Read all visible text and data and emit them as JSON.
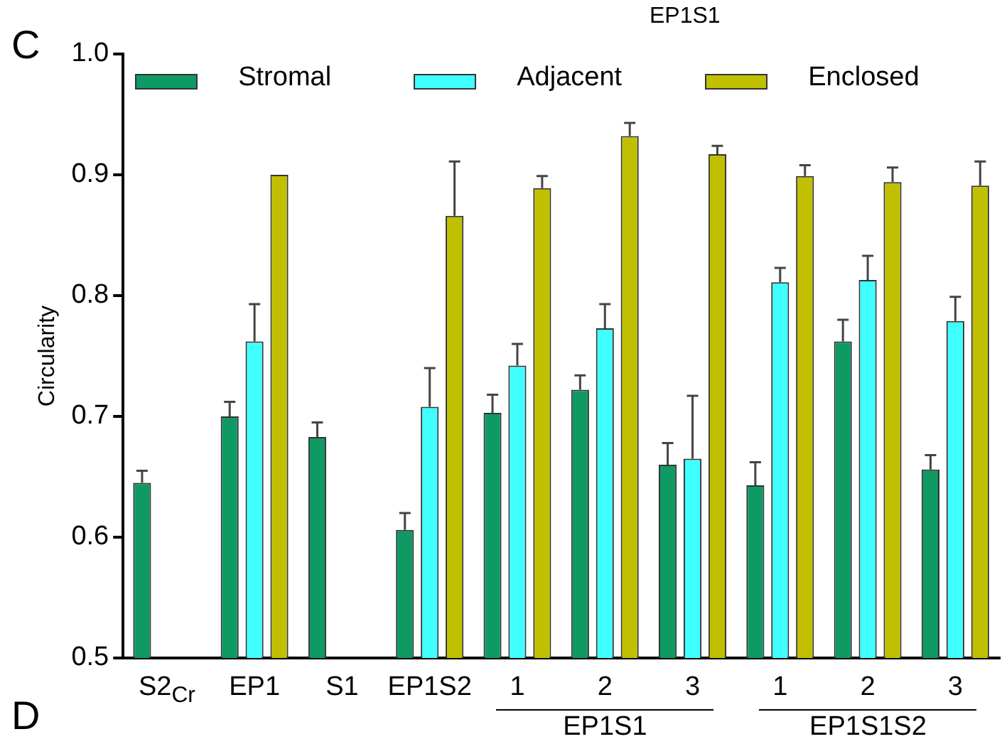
{
  "chart_data": {
    "type": "bar",
    "title": "EP1S1",
    "ylabel": "Circularity",
    "categories": [
      "S2$_{Cr}$",
      "EP1",
      "S1",
      "EP1S2",
      "1",
      "2",
      "3",
      "1",
      "2",
      "3"
    ],
    "series": [
      {
        "name": "Stromal",
        "color": "#0f9a64",
        "values": [
          0.645,
          0.7,
          0.683,
          0.606,
          0.703,
          0.722,
          0.66,
          0.643,
          0.762,
          0.656
        ],
        "errors": [
          [
            0.645,
            0.655
          ],
          [
            0.7,
            0.712
          ],
          [
            0.683,
            0.695
          ],
          [
            0.606,
            0.62
          ],
          [
            0.703,
            0.718
          ],
          [
            0.722,
            0.734
          ],
          [
            0.66,
            0.678
          ],
          [
            0.643,
            0.662
          ],
          [
            0.762,
            0.78
          ],
          [
            0.656,
            0.668
          ]
        ]
      },
      {
        "name": "Adjacent",
        "color": "#40ffff",
        "values": [
          null,
          0.762,
          null,
          0.708,
          0.742,
          0.773,
          0.665,
          0.811,
          0.813,
          0.779
        ],
        "errors": [
          null,
          [
            0.762,
            0.793
          ],
          null,
          [
            0.708,
            0.74
          ],
          [
            0.742,
            0.76
          ],
          [
            0.773,
            0.793
          ],
          [
            0.665,
            0.717
          ],
          [
            0.811,
            0.823
          ],
          [
            0.813,
            0.833
          ],
          [
            0.779,
            0.799
          ]
        ]
      },
      {
        "name": "Enclosed",
        "color": "#c0c000",
        "values": [
          null,
          0.9,
          null,
          0.866,
          0.889,
          0.932,
          0.917,
          0.899,
          0.894,
          0.891
        ],
        "errors": [
          null,
          null,
          null,
          [
            0.866,
            0.911
          ],
          [
            0.889,
            0.899
          ],
          [
            0.932,
            0.943
          ],
          [
            0.917,
            0.924
          ],
          [
            0.899,
            0.908
          ],
          [
            0.894,
            0.906
          ],
          [
            0.891,
            0.911
          ]
        ]
      }
    ],
    "ylim": [
      0.5,
      1.0
    ],
    "yticks": [
      0.5,
      0.6,
      0.7,
      0.8,
      0.9,
      {
        "value": 1,
        "label": "1.0"
      }
    ],
    "grid": false,
    "legend": "top",
    "annotations": [
      "C",
      "D",
      "EP1S1",
      "EP1S1S2"
    ]
  }
}
